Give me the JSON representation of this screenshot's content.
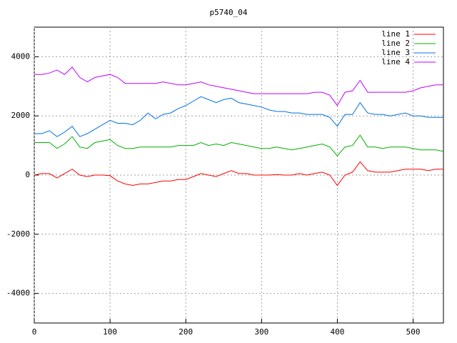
{
  "chart_data": {
    "type": "line",
    "title": "p5740_04",
    "x": [
      0,
      10,
      20,
      30,
      40,
      50,
      60,
      70,
      80,
      90,
      100,
      110,
      120,
      130,
      140,
      150,
      160,
      170,
      180,
      190,
      200,
      210,
      220,
      230,
      240,
      250,
      260,
      270,
      280,
      290,
      300,
      310,
      320,
      330,
      340,
      350,
      360,
      370,
      380,
      390,
      400,
      410,
      420,
      430,
      440,
      450,
      460,
      470,
      480,
      490,
      500,
      510,
      520,
      530,
      540
    ],
    "series": [
      {
        "name": "line 1",
        "color": "#ff0000",
        "values": [
          0,
          50,
          50,
          -100,
          50,
          200,
          0,
          -50,
          0,
          0,
          -20,
          -200,
          -300,
          -350,
          -300,
          -300,
          -250,
          -200,
          -200,
          -150,
          -150,
          -50,
          50,
          0,
          -50,
          50,
          150,
          50,
          50,
          0,
          0,
          0,
          20,
          0,
          0,
          50,
          0,
          50,
          100,
          0,
          -350,
          0,
          100,
          450,
          150,
          100,
          100,
          100,
          150,
          200,
          200,
          200,
          150,
          200,
          200
        ]
      },
      {
        "name": "line 2",
        "color": "#00b000",
        "values": [
          1100,
          1100,
          1100,
          900,
          1050,
          1300,
          950,
          900,
          1100,
          1150,
          1200,
          1000,
          900,
          900,
          950,
          950,
          950,
          950,
          950,
          1000,
          1000,
          1000,
          1100,
          1000,
          1050,
          1000,
          1100,
          1050,
          1000,
          950,
          900,
          900,
          950,
          900,
          850,
          900,
          950,
          1000,
          1050,
          950,
          650,
          950,
          1000,
          1350,
          950,
          950,
          900,
          950,
          950,
          950,
          900,
          850,
          850,
          850,
          800
        ]
      },
      {
        "name": "line 3",
        "color": "#0070e0",
        "values": [
          1400,
          1400,
          1500,
          1300,
          1450,
          1650,
          1300,
          1400,
          1550,
          1700,
          1850,
          1750,
          1750,
          1700,
          1850,
          2100,
          1900,
          2050,
          2100,
          2250,
          2350,
          2500,
          2650,
          2550,
          2450,
          2550,
          2600,
          2450,
          2400,
          2350,
          2300,
          2200,
          2150,
          2150,
          2100,
          2100,
          2050,
          2050,
          2050,
          1950,
          1650,
          2050,
          2050,
          2450,
          2100,
          2050,
          2050,
          2000,
          2050,
          2100,
          2000,
          2000,
          1950,
          1950,
          1950
        ]
      },
      {
        "name": "line 4",
        "color": "#c000ff",
        "values": [
          3400,
          3400,
          3450,
          3550,
          3400,
          3650,
          3300,
          3150,
          3300,
          3350,
          3400,
          3300,
          3100,
          3100,
          3100,
          3100,
          3100,
          3150,
          3100,
          3050,
          3050,
          3100,
          3150,
          3050,
          3000,
          2950,
          2900,
          2850,
          2800,
          2750,
          2750,
          2750,
          2750,
          2750,
          2750,
          2750,
          2750,
          2800,
          2800,
          2700,
          2350,
          2800,
          2850,
          3200,
          2800,
          2800,
          2800,
          2800,
          2800,
          2800,
          2850,
          2950,
          3000,
          3050,
          3050
        ]
      }
    ],
    "xlim": [
      0,
      540
    ],
    "xticks": [
      0,
      100,
      200,
      300,
      400,
      500
    ],
    "ylim": [
      -5000,
      5000
    ],
    "yticks": [
      -4000,
      -2000,
      0,
      2000,
      4000
    ],
    "grid": true,
    "legend": "top-right"
  }
}
